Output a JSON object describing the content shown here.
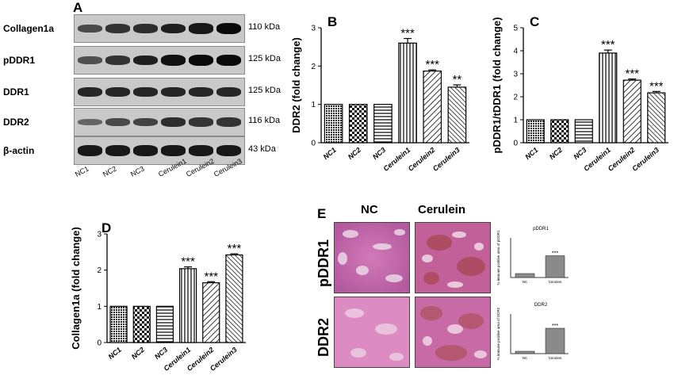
{
  "panels": {
    "A": {
      "letter": "A",
      "rows": [
        {
          "label": "Collagen1a",
          "kda": "110 kDa",
          "intensity": [
            0.55,
            0.7,
            0.75,
            0.85,
            0.9,
            1.0
          ]
        },
        {
          "label": "pDDR1",
          "kda": "125 kDa",
          "intensity": [
            0.5,
            0.7,
            0.85,
            0.95,
            1.0,
            1.0
          ]
        },
        {
          "label": "DDR1",
          "kda": "125 kDa",
          "intensity": [
            0.8,
            0.8,
            0.8,
            0.8,
            0.8,
            0.8
          ]
        },
        {
          "label": "DDR2",
          "kda": "116 kDa",
          "intensity": [
            0.35,
            0.55,
            0.6,
            0.75,
            0.7,
            0.7
          ]
        },
        {
          "label": "β-actin",
          "kda": "43 kDa",
          "intensity": [
            0.9,
            0.9,
            0.9,
            0.9,
            0.9,
            0.9
          ]
        }
      ],
      "lanes": [
        "NC1",
        "NC2",
        "NC3",
        "Cerulein1",
        "Cerulein2",
        "Cerulein3"
      ]
    },
    "E": {
      "letter": "E",
      "col_labels": [
        "NC",
        "Cerulein"
      ],
      "row_labels": [
        "pDDR1",
        "DDR2"
      ],
      "mini_titles": [
        "pDDR1",
        "DDR2"
      ],
      "mini_ylabels": [
        "% immune positive area of pDDR1",
        "% immune positive area of DDR2"
      ],
      "mini_x": [
        "NC",
        "Cerulein"
      ],
      "mini_sig": "***"
    }
  },
  "chart_data": [
    {
      "panel": "B",
      "type": "bar",
      "categories": [
        "NC1",
        "NC2",
        "NC3",
        "Cerulein1",
        "Cerulein2",
        "Cerulein3"
      ],
      "values": [
        1.0,
        1.0,
        1.0,
        2.6,
        1.87,
        1.45
      ],
      "errors": [
        0,
        0,
        0,
        0.12,
        0.03,
        0.06
      ],
      "significance": [
        "",
        "",
        "",
        "***",
        "***",
        "**"
      ],
      "ylabel": "DDR2 (fold change)",
      "ylim": [
        0,
        3
      ],
      "yticks": [
        0,
        1,
        2,
        3
      ],
      "patterns": [
        "dense",
        "checker",
        "hlines",
        "vlines",
        "diag",
        "diag2"
      ]
    },
    {
      "panel": "C",
      "type": "bar",
      "categories": [
        "NC1",
        "NC2",
        "NC3",
        "Cerulein1",
        "Cerulein2",
        "Cerulein3"
      ],
      "values": [
        1.0,
        1.0,
        1.0,
        3.9,
        2.72,
        2.17
      ],
      "errors": [
        0,
        0,
        0,
        0.13,
        0.05,
        0.06
      ],
      "significance": [
        "",
        "",
        "",
        "***",
        "***",
        "***"
      ],
      "ylabel": "pDDR1/tDDR1 (fold change)",
      "ylim": [
        0,
        5
      ],
      "yticks": [
        0,
        1,
        2,
        3,
        4,
        5
      ],
      "patterns": [
        "dense",
        "checker",
        "hlines",
        "vlines",
        "diag",
        "diag2"
      ]
    },
    {
      "panel": "D",
      "type": "bar",
      "categories": [
        "NC1",
        "NC2",
        "NC3",
        "Cerulein1",
        "Cerulein2",
        "Cerulein3"
      ],
      "values": [
        1.0,
        1.0,
        1.0,
        2.04,
        1.65,
        2.42
      ],
      "errors": [
        0,
        0,
        0,
        0.05,
        0.03,
        0.03
      ],
      "significance": [
        "",
        "",
        "",
        "***",
        "***",
        "***"
      ],
      "ylabel": "Collagen1a (fold change)",
      "ylim": [
        0,
        3
      ],
      "yticks": [
        0,
        1,
        2,
        3
      ],
      "patterns": [
        "dense",
        "checker",
        "hlines",
        "vlines",
        "diag",
        "diag2"
      ]
    },
    {
      "panel": "E-pDDR1",
      "type": "bar",
      "categories": [
        "NC",
        "Cerulein"
      ],
      "values": [
        2,
        11
      ],
      "ylim": [
        0,
        20
      ],
      "significance": [
        "",
        "***"
      ]
    },
    {
      "panel": "E-DDR2",
      "type": "bar",
      "categories": [
        "NC",
        "Cerulein"
      ],
      "values": [
        1.5,
        16
      ],
      "ylim": [
        0,
        25
      ],
      "significance": [
        "",
        "***"
      ]
    }
  ]
}
